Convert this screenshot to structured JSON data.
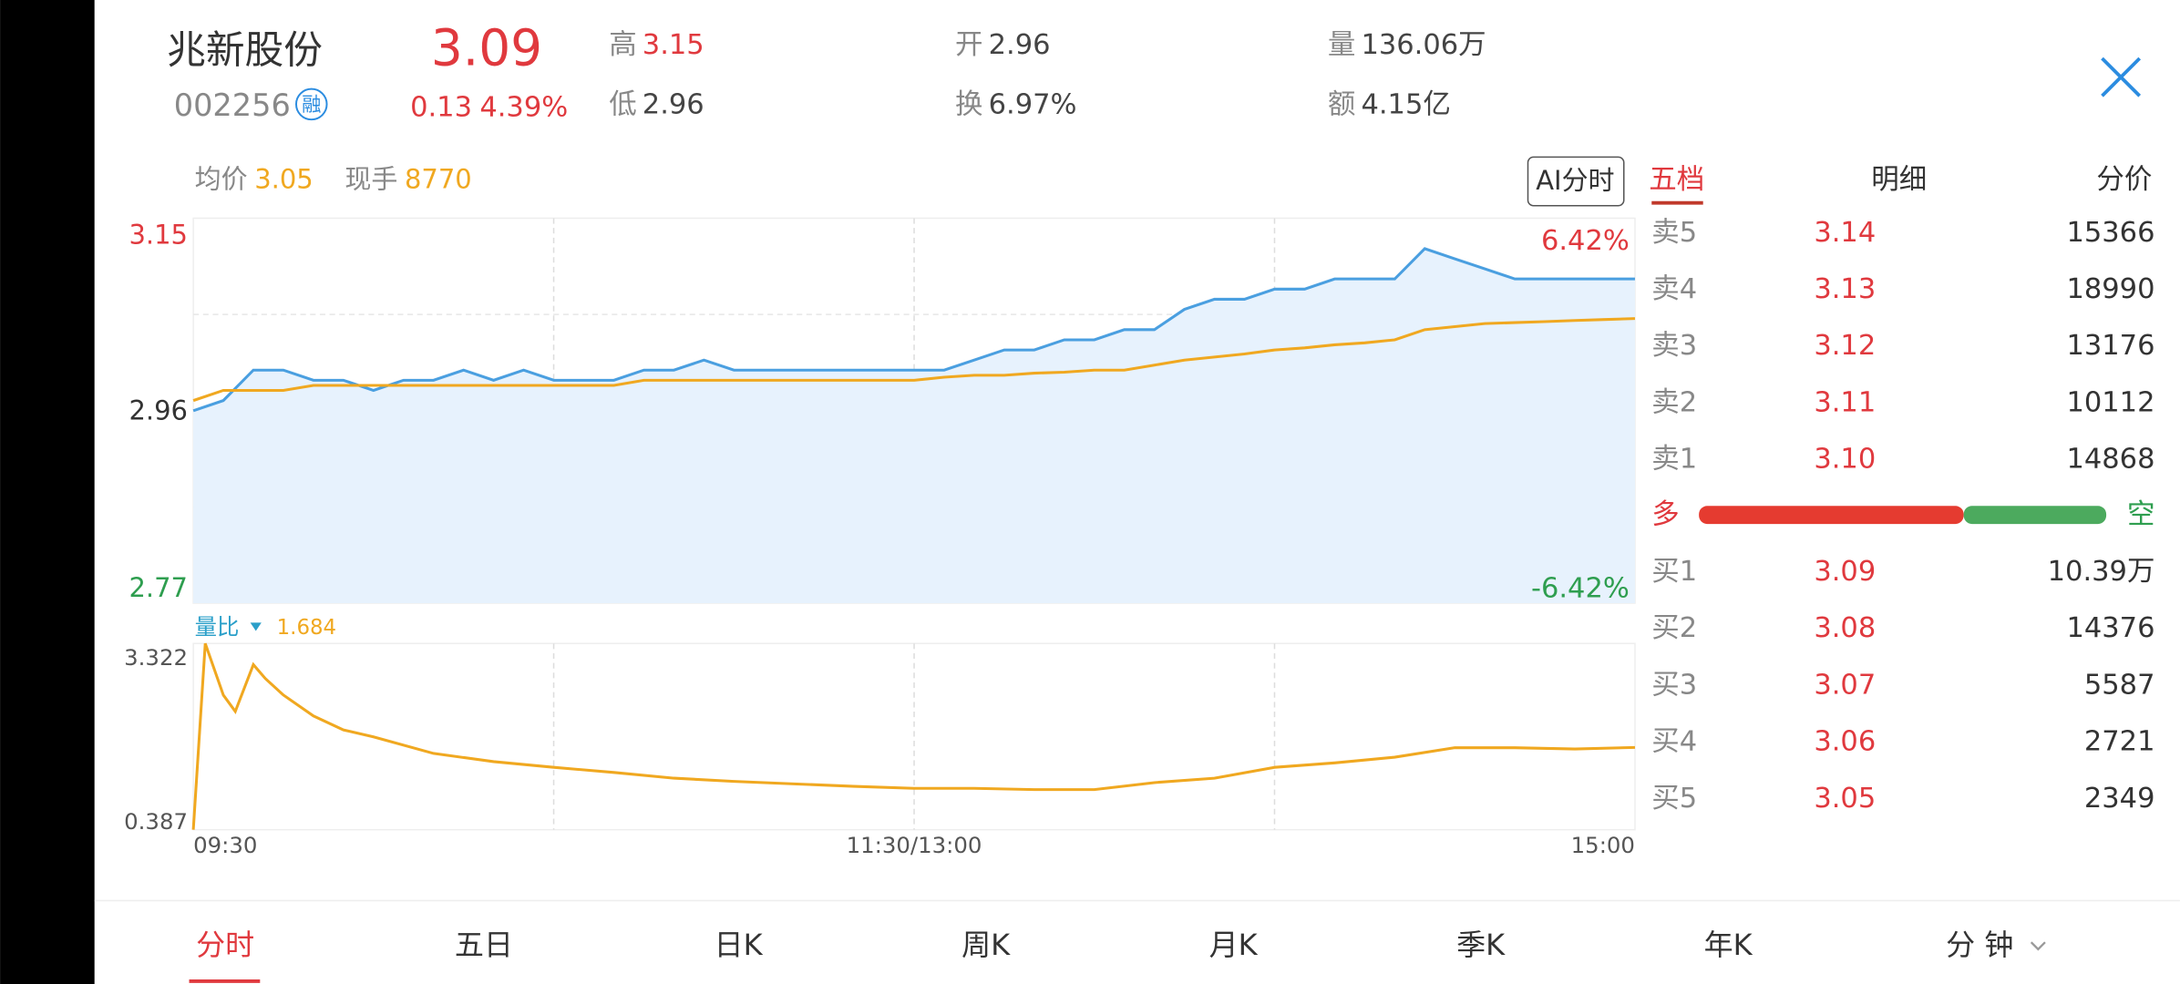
{
  "header": {
    "name": "兆新股份",
    "code": "002256",
    "badge": "融",
    "price": "3.09",
    "change": "0.13",
    "change_pct": "4.39%",
    "stats": [
      {
        "label": "高",
        "value": "3.15",
        "color": "#e0393e"
      },
      {
        "label": "低",
        "value": "2.96",
        "color": "#444444"
      },
      {
        "label": "开",
        "value": "2.96",
        "color": "#444444"
      },
      {
        "label": "换",
        "value": "6.97%",
        "color": "#444444"
      },
      {
        "label": "量",
        "value": "136.06万",
        "color": "#444444"
      },
      {
        "label": "额",
        "value": "4.15亿",
        "color": "#444444"
      }
    ]
  },
  "info": {
    "avg_label": "均价",
    "avg_value": "3.05",
    "hand_label": "现手",
    "hand_value": "8770",
    "ai_button": "AI分时"
  },
  "price_chart": {
    "type": "line",
    "xlim": [
      0,
      240
    ],
    "ylim": [
      2.77,
      3.15
    ],
    "yticks": [
      3.15,
      2.96,
      2.77
    ],
    "y2lim": [
      -6.42,
      6.42
    ],
    "y2ticks": [
      {
        "value": 6.42,
        "label": "6.42%"
      },
      {
        "value": -6.42,
        "label": "-6.42%"
      }
    ],
    "grid": true,
    "x": [
      0,
      5,
      10,
      15,
      20,
      25,
      30,
      35,
      40,
      45,
      50,
      55,
      60,
      65,
      70,
      75,
      80,
      85,
      90,
      95,
      100,
      105,
      110,
      115,
      120,
      125,
      130,
      135,
      140,
      145,
      150,
      155,
      160,
      165,
      170,
      175,
      180,
      185,
      190,
      195,
      200,
      205,
      210,
      215,
      220,
      225,
      230,
      235,
      240
    ],
    "series": [
      {
        "color": "#4a9fe0",
        "fill": "#e7f2fd",
        "values": [
          2.96,
          2.97,
          3.0,
          3.0,
          2.99,
          2.99,
          2.98,
          2.99,
          2.99,
          3.0,
          2.99,
          3.0,
          2.99,
          2.99,
          2.99,
          3.0,
          3.0,
          3.01,
          3.0,
          3.0,
          3.0,
          3.0,
          3.0,
          3.0,
          3.0,
          3.0,
          3.01,
          3.02,
          3.02,
          3.03,
          3.03,
          3.04,
          3.04,
          3.06,
          3.07,
          3.07,
          3.08,
          3.08,
          3.09,
          3.09,
          3.09,
          3.12,
          3.11,
          3.1,
          3.09,
          3.09,
          3.09,
          3.09,
          3.09
        ]
      },
      {
        "color": "#f0a820",
        "values": [
          2.97,
          2.98,
          2.98,
          2.98,
          2.985,
          2.985,
          2.985,
          2.985,
          2.985,
          2.985,
          2.985,
          2.985,
          2.985,
          2.985,
          2.985,
          2.99,
          2.99,
          2.99,
          2.99,
          2.99,
          2.99,
          2.99,
          2.99,
          2.99,
          2.99,
          2.993,
          2.995,
          2.995,
          2.997,
          2.998,
          3.0,
          3.0,
          3.005,
          3.01,
          3.013,
          3.016,
          3.02,
          3.022,
          3.025,
          3.027,
          3.03,
          3.04,
          3.043,
          3.046,
          3.047,
          3.048,
          3.049,
          3.05,
          3.051
        ]
      }
    ]
  },
  "ratio_chart": {
    "type": "line",
    "title": "量比",
    "current": 1.684,
    "color": "#f0a820",
    "xlim": [
      0,
      240
    ],
    "ylim": [
      0.387,
      3.322
    ],
    "yticks": [
      0.387,
      3.322
    ],
    "xticks": [
      {
        "value": 0,
        "label": "09:30"
      },
      {
        "value": 120,
        "label": "11:30/13:00"
      },
      {
        "value": 240,
        "label": "15:00"
      }
    ],
    "x": [
      0,
      2,
      5,
      7,
      10,
      12,
      15,
      20,
      25,
      30,
      40,
      50,
      60,
      70,
      80,
      90,
      100,
      110,
      120,
      130,
      140,
      150,
      160,
      170,
      180,
      190,
      200,
      210,
      220,
      230,
      240
    ],
    "values": [
      0.387,
      3.322,
      2.51,
      2.25,
      2.99,
      2.77,
      2.51,
      2.18,
      1.96,
      1.85,
      1.59,
      1.46,
      1.37,
      1.29,
      1.2,
      1.15,
      1.11,
      1.07,
      1.04,
      1.04,
      1.02,
      1.02,
      1.13,
      1.2,
      1.37,
      1.44,
      1.53,
      1.68,
      1.68,
      1.66,
      1.684
    ]
  },
  "order_book": {
    "tabs": [
      "五档",
      "明细",
      "分价"
    ],
    "asks": [
      {
        "label": "卖5",
        "price": "3.14",
        "volume": "15366"
      },
      {
        "label": "卖4",
        "price": "3.13",
        "volume": "18990"
      },
      {
        "label": "卖3",
        "price": "3.12",
        "volume": "13176"
      },
      {
        "label": "卖2",
        "price": "3.11",
        "volume": "10112"
      },
      {
        "label": "卖1",
        "price": "3.10",
        "volume": "14868"
      }
    ],
    "strength": {
      "buy_label": "多",
      "sell_label": "空",
      "buy_share": 65
    },
    "bids": [
      {
        "label": "买1",
        "price": "3.09",
        "volume": "10.39万"
      },
      {
        "label": "买2",
        "price": "3.08",
        "volume": "14376"
      },
      {
        "label": "买3",
        "price": "3.07",
        "volume": "5587"
      },
      {
        "label": "买4",
        "price": "3.06",
        "volume": "2721"
      },
      {
        "label": "买5",
        "price": "3.05",
        "volume": "2349"
      }
    ]
  },
  "tabs": [
    "分时",
    "五日",
    "日K",
    "周K",
    "月K",
    "季K",
    "年K",
    "分 钟"
  ]
}
